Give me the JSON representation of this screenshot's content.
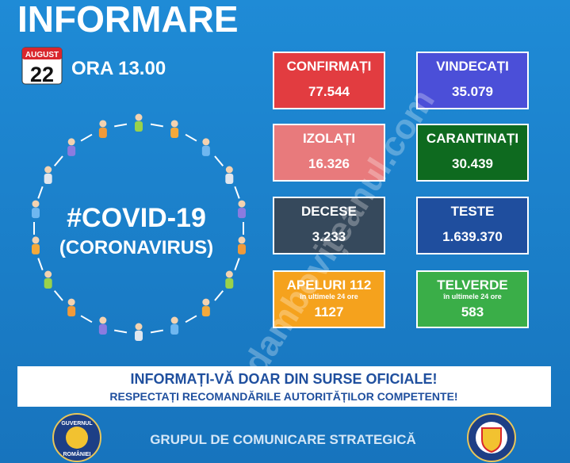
{
  "header": {
    "title": "INFORMARE",
    "date": {
      "month": "AUGUST",
      "day": "22"
    },
    "time": "ORA 13.00"
  },
  "center": {
    "hashtag": "#COVID-19",
    "subtitle": "(CORONAVIRUS)"
  },
  "cards": [
    {
      "label": "CONFIRMAȚI",
      "value": "77.544"
    },
    {
      "label": "VINDECAȚI",
      "value": "35.079"
    },
    {
      "label": "IZOLAȚI",
      "value": "16.326"
    },
    {
      "label": "CARANTINAȚI",
      "value": "30.439"
    },
    {
      "label": "DECESE",
      "value": "3.233"
    },
    {
      "label": "TESTE",
      "value": "1.639.370"
    },
    {
      "label": "APELURI 112",
      "note": "în ultimele 24 ore",
      "value": "1127"
    },
    {
      "label": "TELVERDE",
      "note": "în ultimele 24 ore",
      "value": "583"
    }
  ],
  "banner": {
    "line1": "INFORMAȚI-VĂ DOAR DIN SURSE OFICIALE!",
    "line2": "RESPECTAȚI RECOMANDĂRILE AUTORITĂȚILOR COMPETENTE!"
  },
  "footer": {
    "text": "GRUPUL DE COMUNICARE STRATEGICĂ",
    "logo_left": [
      "GUVERNUL",
      "ROMÂNIEI"
    ]
  },
  "watermark": "dambovițeanul.com"
}
